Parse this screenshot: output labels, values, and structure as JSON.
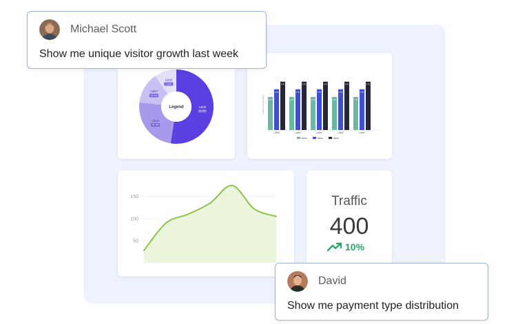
{
  "user_message_1": {
    "name": "Michael Scott",
    "text": "Show me unique visitor growth last week"
  },
  "user_message_2": {
    "name": "David",
    "text": "Show me payment type distribution"
  },
  "donut": {
    "center_label": "Legend",
    "segments": [
      {
        "label": "Label",
        "tag": "52.5%",
        "value": 52.5,
        "color": "#5b3fe0"
      },
      {
        "label": "Label",
        "tag": "24.5%",
        "value": 24.5,
        "color": "#a999ec"
      },
      {
        "label": "Label",
        "tag": "13.6%",
        "value": 13.6,
        "color": "#c9c0f4"
      },
      {
        "label": "Label",
        "tag": "9.5%",
        "value": 9.5,
        "color": "#e4e0f8"
      }
    ]
  },
  "bar_chart": {
    "ylabel": "Label of Component",
    "categories": [
      "Label",
      "Label",
      "Label",
      "Label",
      "Label"
    ],
    "series": [
      {
        "name": "Value",
        "color": "#6ab7a4",
        "values": [
          65,
          65,
          65,
          65,
          65
        ]
      },
      {
        "name": "Value",
        "color": "#3d4fd8",
        "values": [
          80,
          80,
          80,
          80,
          80
        ]
      },
      {
        "name": "Value",
        "color": "#26283a",
        "values": [
          95,
          95,
          95,
          95,
          95
        ]
      }
    ],
    "bar_tags": [
      "4.7K",
      "4.7K",
      "4.7K"
    ]
  },
  "chart_data": {
    "type": "area",
    "x": [
      0,
      1,
      2,
      3,
      4,
      5,
      6
    ],
    "values": [
      28,
      90,
      110,
      135,
      175,
      122,
      105
    ],
    "yticks": [
      50,
      100,
      150
    ],
    "ylim": [
      0,
      190
    ],
    "color": "#8bc34a"
  },
  "traffic": {
    "title": "Traffic",
    "value": "400",
    "delta": "10%"
  }
}
